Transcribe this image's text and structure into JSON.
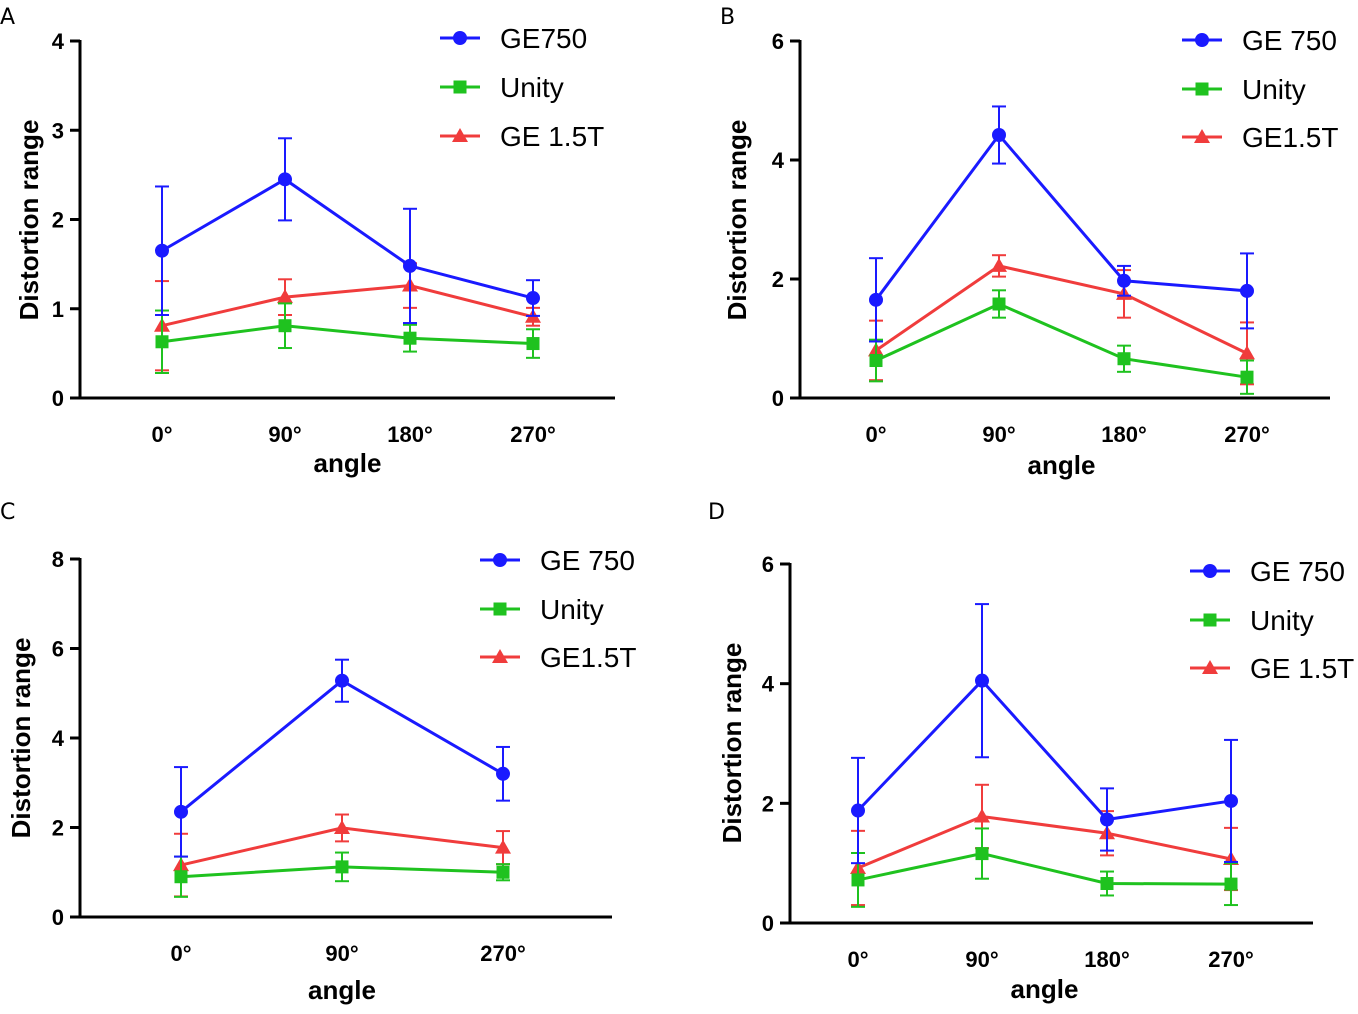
{
  "colors": {
    "GE750": "#1a1aff",
    "Unity": "#1fc21f",
    "GE15T": "#f03c3c"
  },
  "chart_data": [
    {
      "panel": "A",
      "type": "line",
      "categories": [
        "0°",
        "90°",
        "180°",
        "270°"
      ],
      "xlabel": "angle",
      "ylabel": "Distortion range",
      "ylim": [
        0,
        4
      ],
      "yticks": [
        "0",
        "1",
        "2",
        "3",
        "4"
      ],
      "series": [
        {
          "name": "GE750",
          "marker": "circle",
          "colorKey": "GE750",
          "values": [
            1.65,
            2.45,
            1.48,
            1.12
          ],
          "err": [
            0.72,
            0.46,
            0.64,
            0.2
          ]
        },
        {
          "name": "Unity",
          "marker": "square",
          "colorKey": "Unity",
          "values": [
            0.63,
            0.81,
            0.67,
            0.61
          ],
          "err": [
            0.35,
            0.25,
            0.15,
            0.16
          ]
        },
        {
          "name": "GE 1.5T",
          "marker": "triangle",
          "colorKey": "GE15T",
          "values": [
            0.81,
            1.13,
            1.26,
            0.91
          ],
          "err": [
            0.5,
            0.2,
            0.25,
            0.1
          ]
        }
      ]
    },
    {
      "panel": "B",
      "type": "line",
      "categories": [
        "0°",
        "90°",
        "180°",
        "270°"
      ],
      "xlabel": "angle",
      "ylabel": "Distortion range",
      "ylim": [
        0,
        6
      ],
      "yticks": [
        "0",
        "2",
        "4",
        "6"
      ],
      "series": [
        {
          "name": "GE 750",
          "marker": "circle",
          "colorKey": "GE750",
          "values": [
            1.65,
            4.42,
            1.97,
            1.8
          ],
          "err": [
            0.7,
            0.48,
            0.25,
            0.63
          ]
        },
        {
          "name": "Unity",
          "marker": "square",
          "colorKey": "Unity",
          "values": [
            0.63,
            1.58,
            0.66,
            0.35
          ],
          "err": [
            0.35,
            0.23,
            0.22,
            0.28
          ]
        },
        {
          "name": "GE1.5T",
          "marker": "triangle",
          "colorKey": "GE15T",
          "values": [
            0.8,
            2.22,
            1.75,
            0.75
          ],
          "err": [
            0.5,
            0.18,
            0.4,
            0.52
          ]
        }
      ]
    },
    {
      "panel": "C",
      "type": "line",
      "categories": [
        "0°",
        "90°",
        "270°"
      ],
      "xlabel": "",
      "ylabel": "Distortion range",
      "ylim": [
        0,
        8
      ],
      "yticks": [
        "0",
        "2",
        "4",
        "6",
        "8"
      ],
      "series": [
        {
          "name": "GE 750",
          "marker": "circle",
          "colorKey": "GE750",
          "values": [
            2.35,
            5.28,
            3.2
          ],
          "err": [
            1.0,
            0.47,
            0.6
          ]
        },
        {
          "name": "Unity",
          "marker": "square",
          "colorKey": "Unity",
          "values": [
            0.9,
            1.12,
            1.0
          ],
          "err": [
            0.45,
            0.32,
            0.18
          ]
        },
        {
          "name": "GE1.5T",
          "marker": "triangle",
          "colorKey": "GE15T",
          "values": [
            1.16,
            1.99,
            1.55
          ],
          "err": [
            0.7,
            0.3,
            0.37
          ]
        }
      ]
    },
    {
      "panel": "D",
      "type": "line",
      "categories": [
        "0°",
        "90°",
        "180°",
        "270°"
      ],
      "xlabel": "angle",
      "ylabel": "Distortion range",
      "ylim": [
        0,
        6
      ],
      "yticks": [
        "0",
        "2",
        "4",
        "6"
      ],
      "series": [
        {
          "name": "GE 750",
          "marker": "circle",
          "colorKey": "GE750",
          "values": [
            1.88,
            4.05,
            1.73,
            2.04
          ],
          "err": [
            0.88,
            1.28,
            0.52,
            1.02
          ]
        },
        {
          "name": "Unity",
          "marker": "square",
          "colorKey": "Unity",
          "values": [
            0.72,
            1.16,
            0.66,
            0.65
          ],
          "err": [
            0.45,
            0.42,
            0.2,
            0.35
          ]
        },
        {
          "name": "GE 1.5T",
          "marker": "triangle",
          "colorKey": "GE15T",
          "values": [
            0.92,
            1.78,
            1.5,
            1.07
          ],
          "err": [
            0.62,
            0.53,
            0.37,
            0.52
          ]
        }
      ]
    }
  ],
  "footer_label": "angle"
}
